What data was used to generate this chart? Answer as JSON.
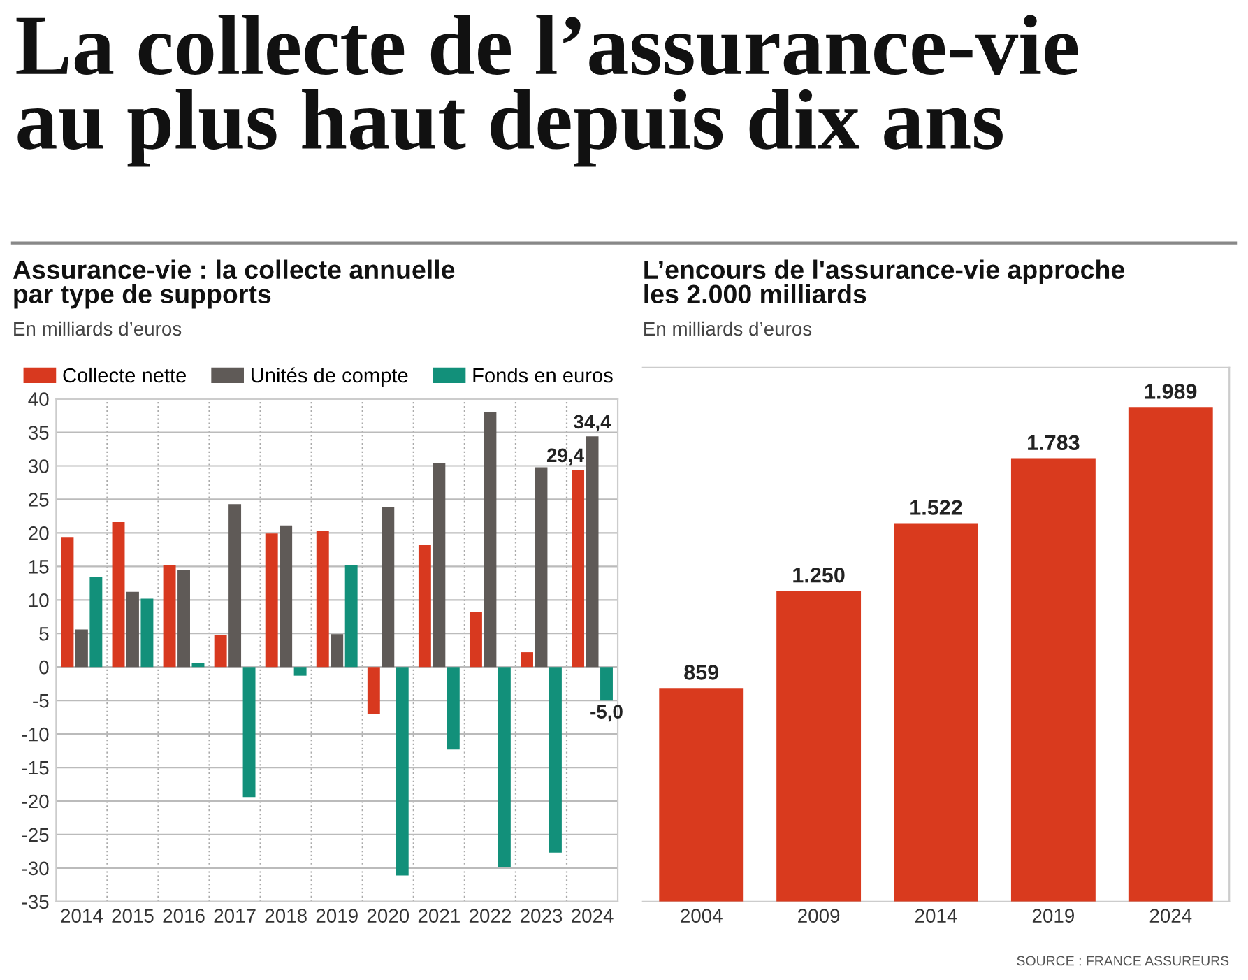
{
  "chart_data": [
    {
      "type": "bar",
      "title": "Assurance-vie : la collecte annuelle\npar type de supports",
      "subtitle": "En milliards d’euros",
      "annotations": [
        "La collecte de l’assurance-vie\nau plus haut depuis dix ans"
      ],
      "categories": [
        "2014",
        "2015",
        "2016",
        "2017",
        "2018",
        "2019",
        "2020",
        "2021",
        "2022",
        "2023",
        "2024"
      ],
      "series": [
        {
          "name": "Collecte nette",
          "color": "#d8391f",
          "values": [
            19.4,
            21.6,
            15.2,
            4.8,
            19.9,
            20.3,
            -7.0,
            18.2,
            8.2,
            2.2,
            29.4
          ],
          "value_labels": [
            null,
            null,
            null,
            null,
            null,
            null,
            null,
            null,
            null,
            null,
            "29,4"
          ]
        },
        {
          "name": "Unités de compte",
          "color": "#5f5a57",
          "values": [
            5.6,
            11.2,
            14.4,
            24.3,
            21.1,
            4.9,
            23.8,
            30.4,
            38.0,
            29.8,
            34.4
          ],
          "value_labels": [
            null,
            null,
            null,
            null,
            null,
            null,
            null,
            null,
            null,
            null,
            "34,4"
          ]
        },
        {
          "name": "Fonds en euros",
          "color": "#12907a",
          "values": [
            13.4,
            10.2,
            0.6,
            -19.4,
            -1.3,
            15.2,
            -31.1,
            -12.3,
            -29.9,
            -27.7,
            -5.0
          ],
          "value_labels": [
            null,
            null,
            null,
            null,
            null,
            null,
            null,
            null,
            null,
            null,
            "-5,0"
          ]
        }
      ],
      "ylim": [
        -35,
        40
      ],
      "yticks": [
        -35,
        -30,
        -25,
        -20,
        -15,
        -10,
        -5,
        0,
        5,
        10,
        15,
        20,
        25,
        30,
        35,
        40
      ],
      "grid": true,
      "legend": "top left"
    },
    {
      "type": "bar",
      "title": "L’encours de l'assurance-vie approche\nles 2.000 milliards",
      "subtitle": "En milliards d’euros",
      "annotations": [
        "SOURCE : FRANCE ASSUREURS"
      ],
      "categories": [
        "2004",
        "2009",
        "2014",
        "2019",
        "2024"
      ],
      "values": [
        859,
        1250,
        1522,
        1783,
        1989
      ],
      "value_labels": [
        "859",
        "1.250",
        "1.522",
        "1.783",
        "1.989"
      ],
      "color": "#d93a1e",
      "tick_labels": "x",
      "grid": false
    }
  ]
}
